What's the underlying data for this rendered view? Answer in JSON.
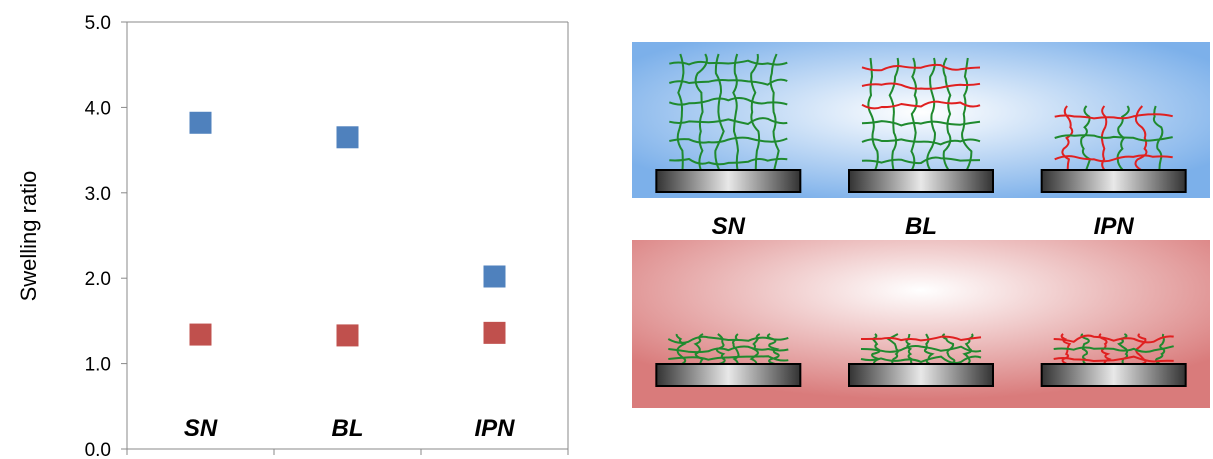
{
  "chart_data": {
    "type": "scatter",
    "categories": [
      "SN",
      "BL",
      "IPN"
    ],
    "series": [
      {
        "values": [
          3.82,
          3.65,
          2.02
        ],
        "color": "#4f81bd"
      },
      {
        "values": [
          1.34,
          1.33,
          1.36
        ],
        "color": "#c0504d"
      }
    ],
    "ylabel": "Swelling ratio",
    "ylim": [
      0,
      5
    ],
    "yticks": [
      "0.0",
      "1.0",
      "2.0",
      "3.0",
      "4.0",
      "5.0"
    ],
    "grid": false,
    "legend": "none"
  },
  "illustration": {
    "labels": [
      "SN",
      "BL",
      "IPN"
    ],
    "top_panel_color": "#7cb0ea",
    "bottom_panel_color": "#d97b7b",
    "network_colors": [
      "#1f8a2e",
      "#e02020"
    ]
  }
}
